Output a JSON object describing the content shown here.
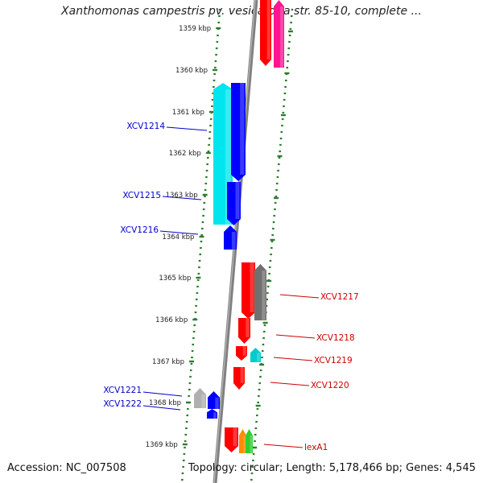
{
  "title": "Xanthomonas campestris pv. vesicatoria str. 85-10, complete ...",
  "footer": {
    "accession": "Accession: NC_007508",
    "topology": "Topology: circular; Length: 5,178,466 bp; Genes: 4,545"
  },
  "colors": {
    "backbone": "#808080",
    "tick": "#2e7d2e",
    "left_label": "#0000cc",
    "right_label": "#cc0000"
  },
  "ticks": [
    "1359 kbp",
    "1360 kbp",
    "1361 kbp",
    "1362 kbp",
    "1363 kbp",
    "1364 kbp",
    "1365 kbp",
    "1366 kbp",
    "1367 kbp",
    "1368 kbp",
    "1369 kbp"
  ],
  "labels": {
    "left": [
      "XCV1214",
      "XCV1215",
      "XCV1216",
      "XCV1221",
      "XCV1222"
    ],
    "right": [
      "XCV1217",
      "XCV1218",
      "XCV1219",
      "XCV1220",
      "lexA1"
    ]
  },
  "feature_colors": [
    "#ff0000",
    "#ff1493",
    "#00e5ee",
    "#0000ff",
    "#ff0000",
    "#707070",
    "#ff0000",
    "#ff0000",
    "#00cccc",
    "#ff0000",
    "#b0b0b0",
    "#0000ff",
    "#0000ff",
    "#ff0000",
    "#ff8c00",
    "#32cd32"
  ]
}
